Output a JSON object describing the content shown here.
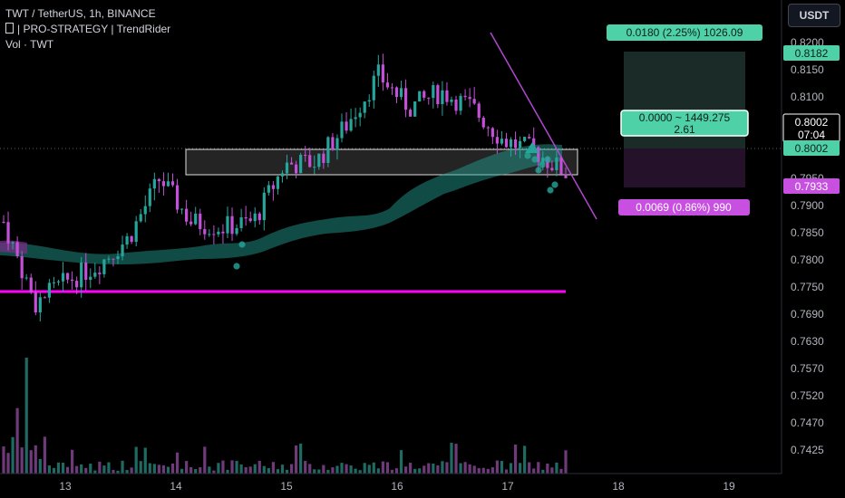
{
  "legend": {
    "symbol_line": "TWT / TetherUS, 1h, BINANCE",
    "indicator_line": "| PRO-STRATEGY | TrendRider",
    "volume_line": "Vol · TWT"
  },
  "currency_button": "USDT",
  "colors": {
    "background": "#000000",
    "bull": "#26a69a",
    "bear": "#c450d8",
    "support_line": "#ff00ff",
    "trendline": "#b048d0",
    "target_box": "#1a2b28",
    "stop_box": "#25122a",
    "tag_green": "#4fd1a8",
    "tag_purple": "#c850e0"
  },
  "chart_data": {
    "type": "candlestick",
    "symbol": "TWT / TetherUS",
    "interval": "1h",
    "exchange": "BINANCE",
    "y_axis_ticks": [
      "0.8200",
      "0.8150",
      "0.8100",
      "0.8050",
      "0.8000",
      "0.7950",
      "0.7900",
      "0.7850",
      "0.7800",
      "0.7750",
      "0.7690",
      "0.7630",
      "0.7570",
      "0.7520",
      "0.7470",
      "0.7425"
    ],
    "x_axis_ticks": [
      "13",
      "14",
      "15",
      "16",
      "17",
      "18",
      "19"
    ],
    "price_tags": {
      "target": "0.8182",
      "current": "0.8002",
      "countdown": "07:04",
      "entry": "0.8002",
      "stop": "0.7933"
    },
    "position_labels": {
      "target": "0.0180 (2.25%) 1026.09",
      "center_line1": "0.0000 ~ 1449.275",
      "center_line2": "2.61",
      "stop": "0.0069 (0.86%) 990"
    },
    "levels": {
      "support": 0.774,
      "zone_top": 0.8002,
      "zone_bottom": 0.795
    },
    "close_path": [
      0.787,
      0.772,
      0.776,
      0.779,
      0.784,
      0.795,
      0.787,
      0.786,
      0.787,
      0.7975,
      0.798,
      0.805,
      0.814,
      0.808,
      0.811,
      0.808,
      0.802,
      0.8,
      0.796
    ]
  }
}
